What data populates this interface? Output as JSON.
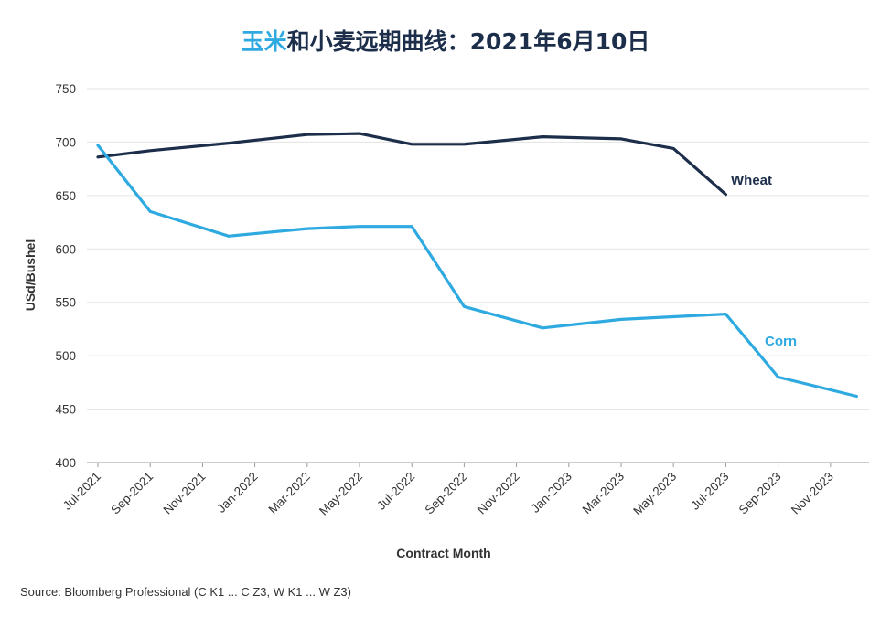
{
  "title": {
    "highlight": "玉米",
    "rest": "和小麦远期曲线：2021年6月10日"
  },
  "source": "Source: Bloomberg Professional (C K1 ... C Z3, W K1 ... W Z3)",
  "chart_data": {
    "type": "line",
    "xlabel": "Contract Month",
    "ylabel": "USd/Bushel",
    "ylim": [
      400,
      750
    ],
    "yticks": [
      400,
      450,
      500,
      550,
      600,
      650,
      700,
      750
    ],
    "categories": [
      "Jul-2021",
      "Sep-2021",
      "Nov-2021",
      "Jan-2022",
      "Mar-2022",
      "May-2022",
      "Jul-2022",
      "Sep-2022",
      "Nov-2022",
      "Jan-2023",
      "Mar-2023",
      "May-2023",
      "Jul-2023",
      "Sep-2023",
      "Nov-2023"
    ],
    "grid": true,
    "series": [
      {
        "name": "Wheat",
        "color": "#1c2e4a",
        "x": [
          "Jul-2021",
          "Sep-2021",
          "Dec-2021",
          "Mar-2022",
          "May-2022",
          "Jul-2022",
          "Sep-2022",
          "Dec-2022",
          "Mar-2023",
          "May-2023",
          "Jul-2023"
        ],
        "values": [
          686,
          692,
          699,
          707,
          708,
          698,
          698,
          705,
          703,
          694,
          651
        ]
      },
      {
        "name": "Corn",
        "color": "#2eaae1",
        "x": [
          "Jul-2021",
          "Sep-2021",
          "Dec-2021",
          "Mar-2022",
          "May-2022",
          "Jul-2022",
          "Sep-2022",
          "Dec-2022",
          "Mar-2023",
          "Jul-2023",
          "Sep-2023",
          "Dec-2023"
        ],
        "values": [
          697,
          635,
          612,
          619,
          621,
          621,
          546,
          526,
          534,
          539,
          480,
          462
        ]
      }
    ]
  }
}
